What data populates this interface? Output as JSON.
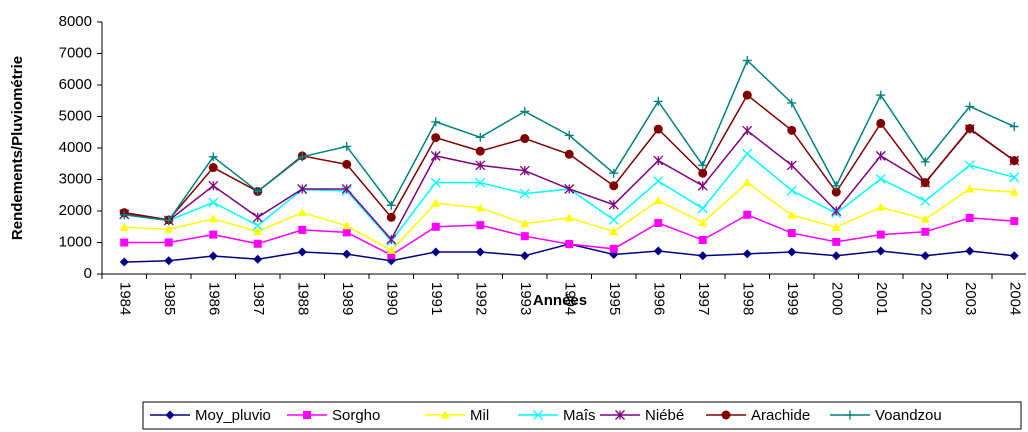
{
  "chart_data": {
    "type": "line",
    "xlabel": "Années",
    "ylabel": "Rendements/Pluviométrie",
    "categories": [
      "1984",
      "1985",
      "1986",
      "1987",
      "1988",
      "1989",
      "1990",
      "1991",
      "1992",
      "1993",
      "1994",
      "1995",
      "1996",
      "1997",
      "1998",
      "1999",
      "2000",
      "2001",
      "2002",
      "2003",
      "2004"
    ],
    "ylim": [
      0,
      8000
    ],
    "yticks": [
      0,
      1000,
      2000,
      3000,
      4000,
      5000,
      6000,
      7000,
      8000
    ],
    "grid": false,
    "legend": "bottom",
    "series": [
      {
        "name": "Moy_pluvio",
        "color": "#000080",
        "marker": "diamond",
        "values": [
          380,
          420,
          570,
          470,
          700,
          630,
          420,
          700,
          700,
          580,
          950,
          620,
          730,
          580,
          640,
          700,
          580,
          730,
          580,
          730,
          580
        ]
      },
      {
        "name": "Sorgho",
        "color": "#ff00ff",
        "marker": "square",
        "values": [
          1000,
          1000,
          1250,
          960,
          1400,
          1320,
          600,
          1500,
          1550,
          1200,
          950,
          800,
          1620,
          1080,
          1880,
          1300,
          1020,
          1250,
          1340,
          1780,
          1680
        ]
      },
      {
        "name": "Mil",
        "color": "#ffff00",
        "marker": "triangle",
        "values": [
          1480,
          1420,
          1750,
          1350,
          1950,
          1530,
          750,
          2250,
          2100,
          1600,
          1780,
          1350,
          2330,
          1630,
          2900,
          1870,
          1480,
          2120,
          1740,
          2700,
          2600
        ]
      },
      {
        "name": "Maîs",
        "color": "#00ffff",
        "marker": "x",
        "values": [
          1880,
          1700,
          2270,
          1540,
          2680,
          2640,
          1050,
          2900,
          2900,
          2550,
          2700,
          1720,
          2950,
          2080,
          3820,
          2650,
          1930,
          3020,
          2320,
          3450,
          3070
        ]
      },
      {
        "name": "Niébé",
        "color": "#800080",
        "marker": "star",
        "values": [
          1900,
          1700,
          2800,
          1800,
          2700,
          2700,
          1100,
          3750,
          3450,
          3280,
          2700,
          2200,
          3600,
          2800,
          4550,
          3450,
          2000,
          3750,
          2900,
          4600,
          3600
        ]
      },
      {
        "name": "Arachide",
        "color": "#800000",
        "marker": "circle",
        "values": [
          1950,
          1720,
          3380,
          2620,
          3750,
          3480,
          1800,
          4330,
          3900,
          4300,
          3800,
          2800,
          4600,
          3200,
          5680,
          4560,
          2600,
          4780,
          2900,
          4620,
          3600
        ]
      },
      {
        "name": "Voandzou",
        "color": "#008080",
        "marker": "plus",
        "values": [
          1880,
          1700,
          3720,
          2620,
          3720,
          4050,
          2180,
          4830,
          4340,
          5160,
          4400,
          3200,
          5480,
          3450,
          6780,
          5430,
          2800,
          5680,
          3560,
          5320,
          4680
        ]
      }
    ]
  }
}
